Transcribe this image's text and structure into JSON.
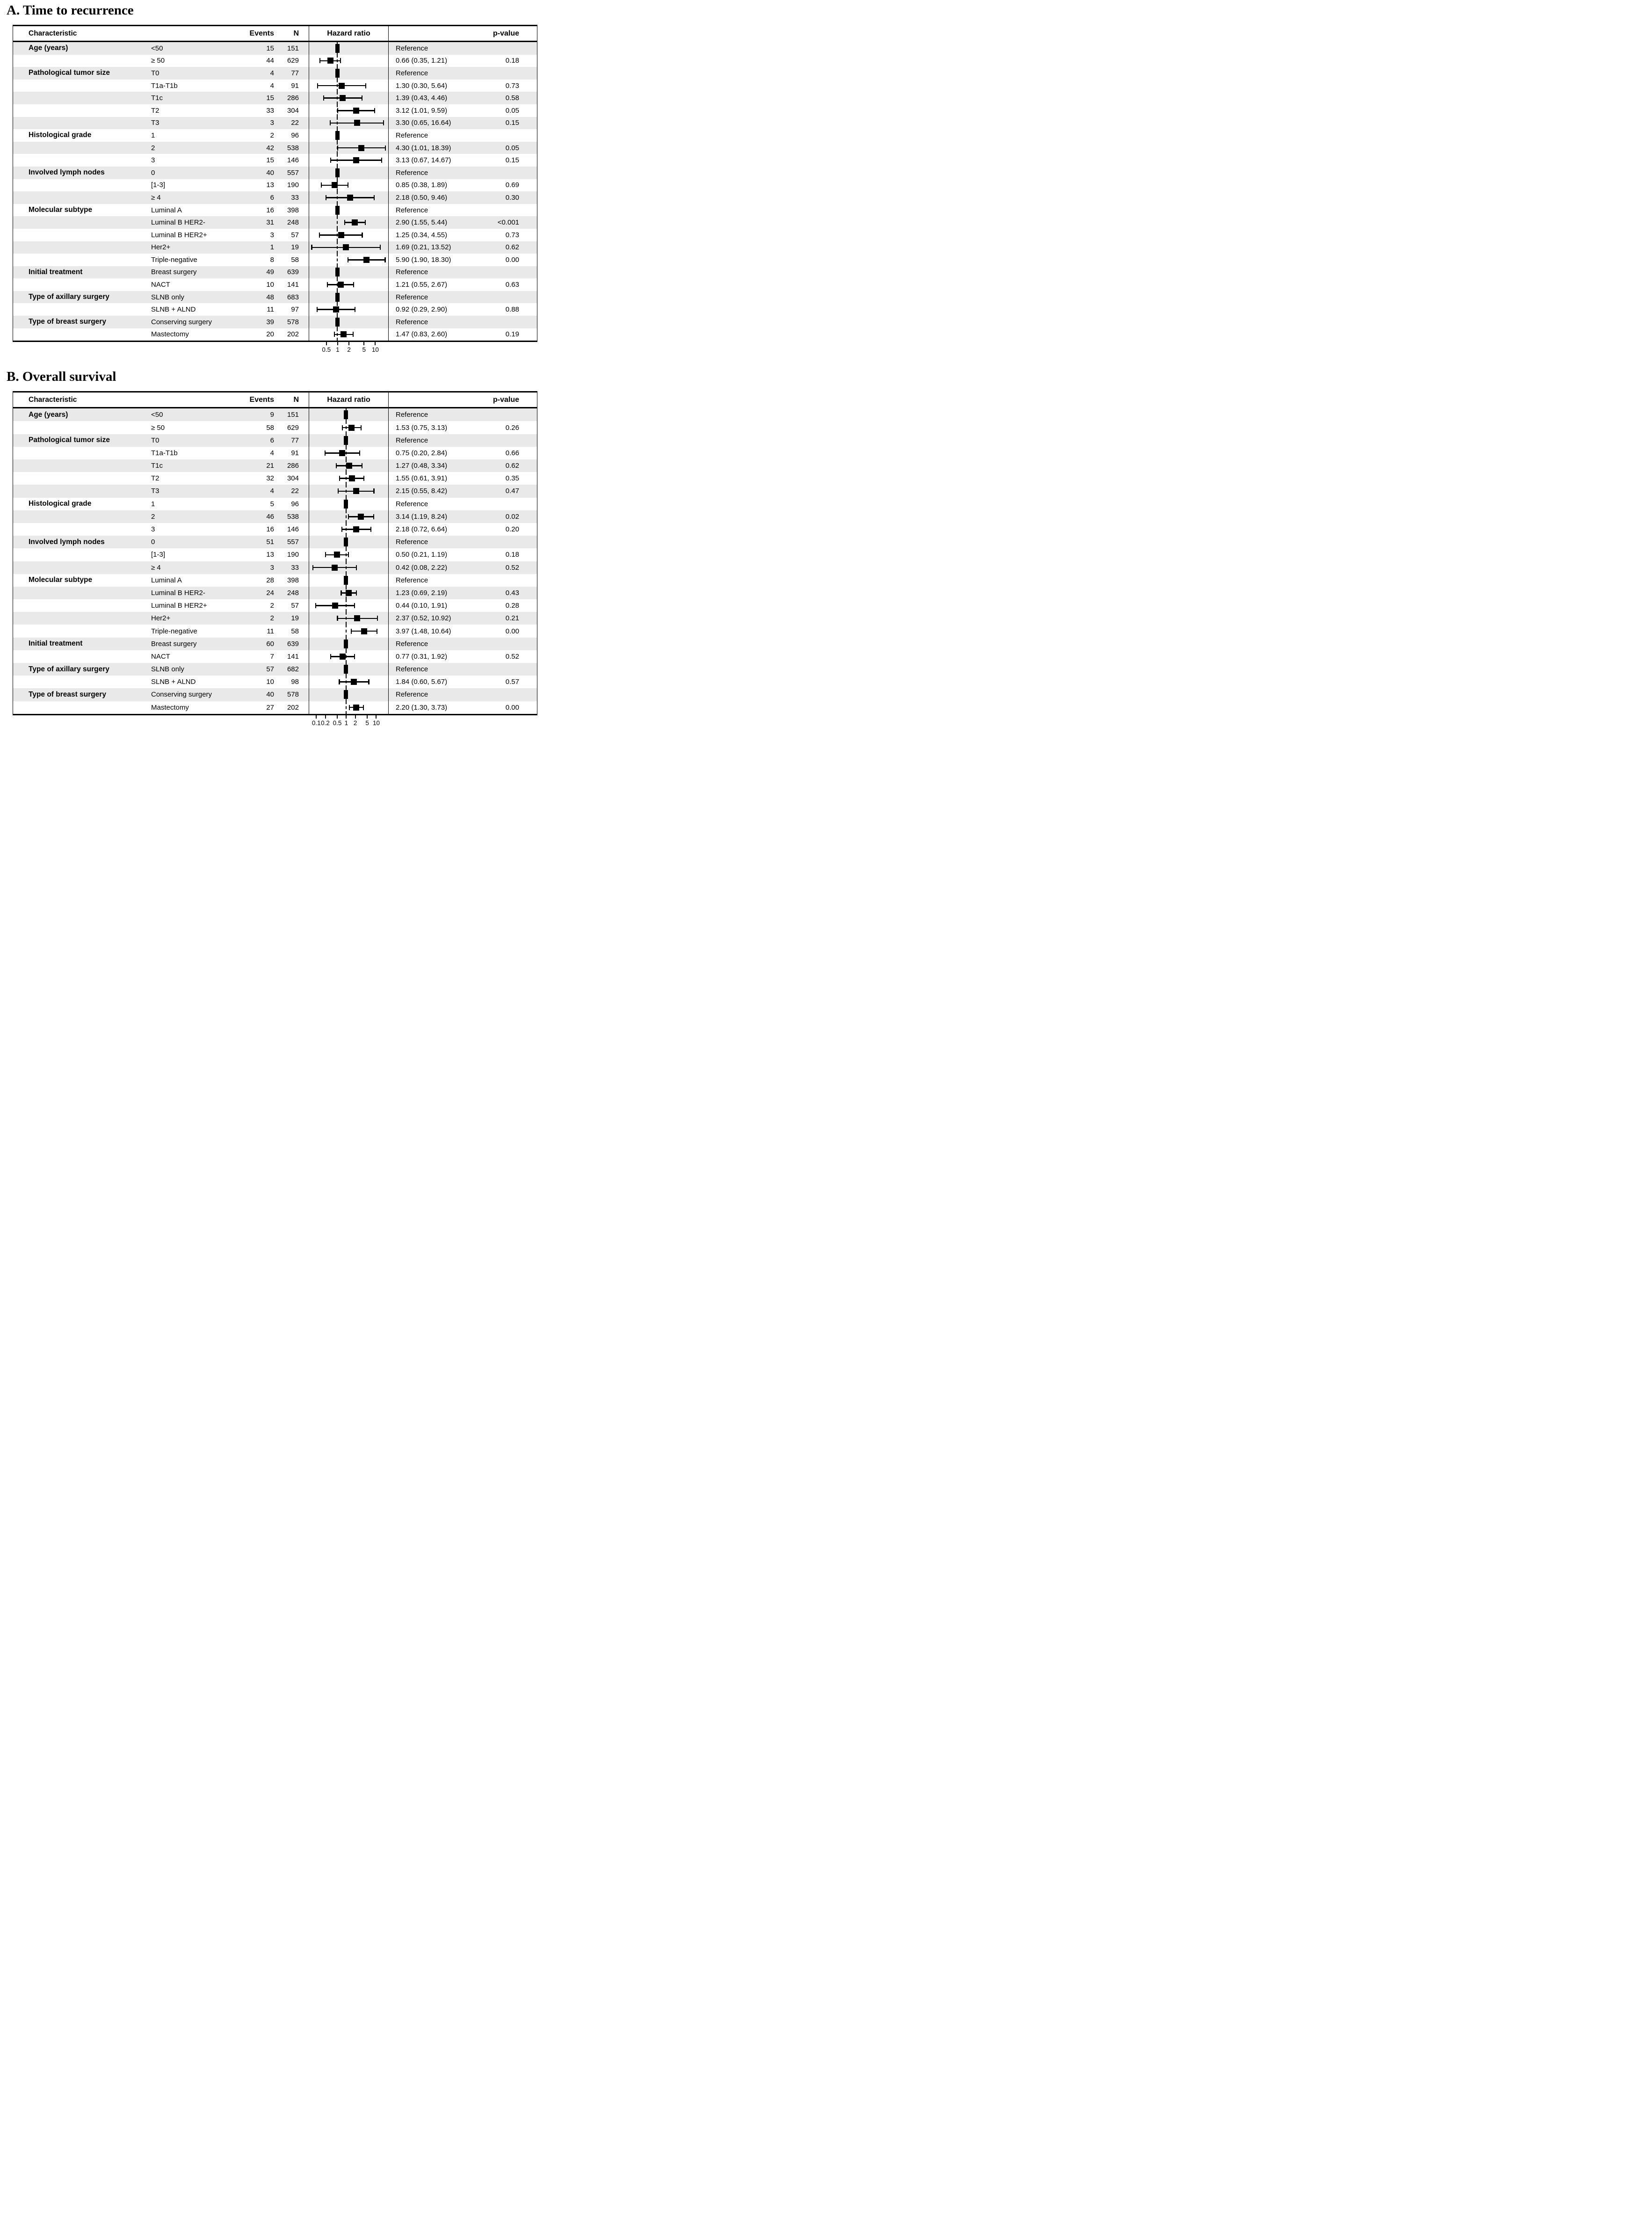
{
  "colors": {
    "background": "#ffffff",
    "row_shade": "#e9e9e9",
    "marker": "#000000",
    "text": "#000000",
    "border": "#000000"
  },
  "chart_data": [
    {
      "id": "A",
      "type": "forest",
      "title": "A. Time to recurrence",
      "columns": {
        "characteristic": "Characteristic",
        "events": "Events",
        "n": "N",
        "hazard_ratio": "Hazard ratio",
        "p_value": "p-value"
      },
      "reference_label": "Reference",
      "null_line": 1,
      "x_axis": {
        "scale": "log",
        "domain": [
          0.18,
          22
        ],
        "ticks": [
          0.5,
          1,
          2,
          5,
          10
        ],
        "tick_labels": [
          "0.5",
          "1",
          "2",
          "5",
          "10"
        ]
      },
      "rows": [
        {
          "group": "Age (years)",
          "label": "<50",
          "events": 15,
          "n": 151,
          "reference": true,
          "estimate_label": "Reference",
          "p": ""
        },
        {
          "group": "",
          "label": "≥ 50",
          "events": 44,
          "n": 629,
          "hr": 0.66,
          "ci": [
            0.35,
            1.21
          ],
          "estimate_label": "0.66 (0.35, 1.21)",
          "p": "0.18"
        },
        {
          "group": "Pathological tumor size",
          "label": "T0",
          "events": 4,
          "n": 77,
          "reference": true,
          "estimate_label": "Reference",
          "p": ""
        },
        {
          "group": "",
          "label": "T1a-T1b",
          "events": 4,
          "n": 91,
          "hr": 1.3,
          "ci": [
            0.3,
            5.64
          ],
          "estimate_label": "1.30 (0.30, 5.64)",
          "p": "0.73"
        },
        {
          "group": "",
          "label": "T1c",
          "events": 15,
          "n": 286,
          "hr": 1.39,
          "ci": [
            0.43,
            4.46
          ],
          "estimate_label": "1.39 (0.43, 4.46)",
          "p": "0.58"
        },
        {
          "group": "",
          "label": "T2",
          "events": 33,
          "n": 304,
          "hr": 3.12,
          "ci": [
            1.01,
            9.59
          ],
          "estimate_label": "3.12 (1.01, 9.59)",
          "p": "0.05"
        },
        {
          "group": "",
          "label": "T3",
          "events": 3,
          "n": 22,
          "hr": 3.3,
          "ci": [
            0.65,
            16.64
          ],
          "estimate_label": "3.30 (0.65, 16.64)",
          "p": "0.15"
        },
        {
          "group": "Histological grade",
          "label": "1",
          "events": 2,
          "n": 96,
          "reference": true,
          "estimate_label": "Reference",
          "p": ""
        },
        {
          "group": "",
          "label": "2",
          "events": 42,
          "n": 538,
          "hr": 4.3,
          "ci": [
            1.01,
            18.39
          ],
          "estimate_label": "4.30 (1.01, 18.39)",
          "p": "0.05"
        },
        {
          "group": "",
          "label": "3",
          "events": 15,
          "n": 146,
          "hr": 3.13,
          "ci": [
            0.67,
            14.67
          ],
          "estimate_label": "3.13 (0.67, 14.67)",
          "p": "0.15"
        },
        {
          "group": "Involved lymph nodes",
          "label": "0",
          "events": 40,
          "n": 557,
          "reference": true,
          "estimate_label": "Reference",
          "p": ""
        },
        {
          "group": "",
          "label": "[1-3]",
          "events": 13,
          "n": 190,
          "hr": 0.85,
          "ci": [
            0.38,
            1.89
          ],
          "estimate_label": "0.85 (0.38, 1.89)",
          "p": "0.69"
        },
        {
          "group": "",
          "label": "≥ 4",
          "events": 6,
          "n": 33,
          "hr": 2.18,
          "ci": [
            0.5,
            9.46
          ],
          "estimate_label": "2.18 (0.50, 9.46)",
          "p": "0.30"
        },
        {
          "group": "Molecular subtype",
          "label": "Luminal A",
          "events": 16,
          "n": 398,
          "reference": true,
          "estimate_label": "Reference",
          "p": ""
        },
        {
          "group": "",
          "label": "Luminal B HER2-",
          "events": 31,
          "n": 248,
          "hr": 2.9,
          "ci": [
            1.55,
            5.44
          ],
          "estimate_label": "2.90 (1.55, 5.44)",
          "p": "<0.001"
        },
        {
          "group": "",
          "label": "Luminal B HER2+",
          "events": 3,
          "n": 57,
          "hr": 1.25,
          "ci": [
            0.34,
            4.55
          ],
          "estimate_label": "1.25 (0.34, 4.55)",
          "p": "0.73"
        },
        {
          "group": "",
          "label": "Her2+",
          "events": 1,
          "n": 19,
          "hr": 1.69,
          "ci": [
            0.21,
            13.52
          ],
          "estimate_label": "1.69 (0.21, 13.52)",
          "p": "0.62"
        },
        {
          "group": "",
          "label": "Triple-negative",
          "events": 8,
          "n": 58,
          "hr": 5.9,
          "ci": [
            1.9,
            18.3
          ],
          "estimate_label": "5.90 (1.90, 18.30)",
          "p": "0.00"
        },
        {
          "group": "Initial treatment",
          "label": "Breast surgery",
          "events": 49,
          "n": 639,
          "reference": true,
          "estimate_label": "Reference",
          "p": ""
        },
        {
          "group": "",
          "label": "NACT",
          "events": 10,
          "n": 141,
          "hr": 1.21,
          "ci": [
            0.55,
            2.67
          ],
          "estimate_label": "1.21 (0.55, 2.67)",
          "p": "0.63"
        },
        {
          "group": "Type of axillary surgery",
          "label": "SLNB only",
          "events": 48,
          "n": 683,
          "reference": true,
          "estimate_label": "Reference",
          "p": ""
        },
        {
          "group": "",
          "label": "SLNB + ALND",
          "events": 11,
          "n": 97,
          "hr": 0.92,
          "ci": [
            0.29,
            2.9
          ],
          "estimate_label": "0.92 (0.29, 2.90)",
          "p": "0.88"
        },
        {
          "group": "Type of breast surgery",
          "label": "Conserving surgery",
          "events": 39,
          "n": 578,
          "reference": true,
          "estimate_label": "Reference",
          "p": ""
        },
        {
          "group": "",
          "label": "Mastectomy",
          "events": 20,
          "n": 202,
          "hr": 1.47,
          "ci": [
            0.83,
            2.6
          ],
          "estimate_label": "1.47 (0.83, 2.60)",
          "p": "0.19"
        }
      ]
    },
    {
      "id": "B",
      "type": "forest",
      "title": "B. Overall survival",
      "columns": {
        "characteristic": "Characteristic",
        "events": "Events",
        "n": "N",
        "hazard_ratio": "Hazard ratio",
        "p_value": "p-value"
      },
      "reference_label": "Reference",
      "null_line": 1,
      "x_axis": {
        "scale": "log",
        "domain": [
          0.06,
          25
        ],
        "ticks": [
          0.1,
          0.2,
          0.5,
          1,
          2,
          5,
          10
        ],
        "tick_labels": [
          "0.1",
          "0.2",
          "0.5",
          "1",
          "2",
          "5",
          "10"
        ]
      },
      "rows": [
        {
          "group": "Age (years)",
          "label": "<50",
          "events": 9,
          "n": 151,
          "reference": true,
          "estimate_label": "Reference",
          "p": ""
        },
        {
          "group": "",
          "label": "≥ 50",
          "events": 58,
          "n": 629,
          "hr": 1.53,
          "ci": [
            0.75,
            3.13
          ],
          "estimate_label": "1.53 (0.75, 3.13)",
          "p": "0.26"
        },
        {
          "group": "Pathological tumor size",
          "label": "T0",
          "events": 6,
          "n": 77,
          "reference": true,
          "estimate_label": "Reference",
          "p": ""
        },
        {
          "group": "",
          "label": "T1a-T1b",
          "events": 4,
          "n": 91,
          "hr": 0.75,
          "ci": [
            0.2,
            2.84
          ],
          "estimate_label": "0.75 (0.20, 2.84)",
          "p": "0.66"
        },
        {
          "group": "",
          "label": "T1c",
          "events": 21,
          "n": 286,
          "hr": 1.27,
          "ci": [
            0.48,
            3.34
          ],
          "estimate_label": "1.27 (0.48, 3.34)",
          "p": "0.62"
        },
        {
          "group": "",
          "label": "T2",
          "events": 32,
          "n": 304,
          "hr": 1.55,
          "ci": [
            0.61,
            3.91
          ],
          "estimate_label": "1.55 (0.61, 3.91)",
          "p": "0.35"
        },
        {
          "group": "",
          "label": "T3",
          "events": 4,
          "n": 22,
          "hr": 2.15,
          "ci": [
            0.55,
            8.42
          ],
          "estimate_label": "2.15 (0.55, 8.42)",
          "p": "0.47"
        },
        {
          "group": "Histological grade",
          "label": "1",
          "events": 5,
          "n": 96,
          "reference": true,
          "estimate_label": "Reference",
          "p": ""
        },
        {
          "group": "",
          "label": "2",
          "events": 46,
          "n": 538,
          "hr": 3.14,
          "ci": [
            1.19,
            8.24
          ],
          "estimate_label": "3.14 (1.19, 8.24)",
          "p": "0.02"
        },
        {
          "group": "",
          "label": "3",
          "events": 16,
          "n": 146,
          "hr": 2.18,
          "ci": [
            0.72,
            6.64
          ],
          "estimate_label": "2.18 (0.72, 6.64)",
          "p": "0.20"
        },
        {
          "group": "Involved lymph nodes",
          "label": "0",
          "events": 51,
          "n": 557,
          "reference": true,
          "estimate_label": "Reference",
          "p": ""
        },
        {
          "group": "",
          "label": "[1-3]",
          "events": 13,
          "n": 190,
          "hr": 0.5,
          "ci": [
            0.21,
            1.19
          ],
          "estimate_label": "0.50 (0.21, 1.19)",
          "p": "0.18"
        },
        {
          "group": "",
          "label": "≥ 4",
          "events": 3,
          "n": 33,
          "hr": 0.42,
          "ci": [
            0.08,
            2.22
          ],
          "estimate_label": "0.42 (0.08, 2.22)",
          "p": "0.52"
        },
        {
          "group": "Molecular subtype",
          "label": "Luminal A",
          "events": 28,
          "n": 398,
          "reference": true,
          "estimate_label": "Reference",
          "p": ""
        },
        {
          "group": "",
          "label": "Luminal B HER2-",
          "events": 24,
          "n": 248,
          "hr": 1.23,
          "ci": [
            0.69,
            2.19
          ],
          "estimate_label": "1.23 (0.69, 2.19)",
          "p": "0.43"
        },
        {
          "group": "",
          "label": "Luminal B HER2+",
          "events": 2,
          "n": 57,
          "hr": 0.44,
          "ci": [
            0.1,
            1.91
          ],
          "estimate_label": "0.44 (0.10, 1.91)",
          "p": "0.28"
        },
        {
          "group": "",
          "label": "Her2+",
          "events": 2,
          "n": 19,
          "hr": 2.37,
          "ci": [
            0.52,
            10.92
          ],
          "estimate_label": "2.37 (0.52, 10.92)",
          "p": "0.21"
        },
        {
          "group": "",
          "label": "Triple-negative",
          "events": 11,
          "n": 58,
          "hr": 3.97,
          "ci": [
            1.48,
            10.64
          ],
          "estimate_label": "3.97 (1.48, 10.64)",
          "p": "0.00"
        },
        {
          "group": "Initial treatment",
          "label": "Breast surgery",
          "events": 60,
          "n": 639,
          "reference": true,
          "estimate_label": "Reference",
          "p": ""
        },
        {
          "group": "",
          "label": "NACT",
          "events": 7,
          "n": 141,
          "hr": 0.77,
          "ci": [
            0.31,
            1.92
          ],
          "estimate_label": "0.77 (0.31, 1.92)",
          "p": "0.52"
        },
        {
          "group": "Type of axillary surgery",
          "label": "SLNB only",
          "events": 57,
          "n": 682,
          "reference": true,
          "estimate_label": "Reference",
          "p": ""
        },
        {
          "group": "",
          "label": "SLNB + ALND",
          "events": 10,
          "n": 98,
          "hr": 1.84,
          "ci": [
            0.6,
            5.67
          ],
          "estimate_label": "1.84 (0.60, 5.67)",
          "p": "0.57"
        },
        {
          "group": "Type of breast surgery",
          "label": "Conserving surgery",
          "events": 40,
          "n": 578,
          "reference": true,
          "estimate_label": "Reference",
          "p": ""
        },
        {
          "group": "",
          "label": "Mastectomy",
          "events": 27,
          "n": 202,
          "hr": 2.2,
          "ci": [
            1.3,
            3.73
          ],
          "estimate_label": "2.20 (1.30, 3.73)",
          "p": "0.00"
        }
      ]
    }
  ]
}
